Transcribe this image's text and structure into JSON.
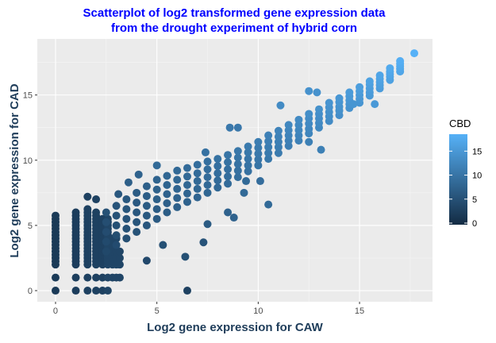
{
  "chart_data": {
    "type": "scatter",
    "title_line1": "Scatterplot of log2 transformed gene expression data",
    "title_line2": "from the drought experiment of hybrid corn",
    "xlabel": "Log2 gene expression for CAW",
    "ylabel": "Log2 gene expression for CAD",
    "xlim": [
      -0.9,
      18.6
    ],
    "ylim": [
      -0.85,
      19.3
    ],
    "x_ticks": [
      "0",
      "5",
      "10",
      "15"
    ],
    "x_tick_values": [
      0,
      5,
      10,
      15
    ],
    "y_ticks": [
      "0",
      "5",
      "10",
      "15"
    ],
    "y_tick_values": [
      0,
      5,
      10,
      15
    ],
    "grid": true,
    "legend": {
      "title": "CBD",
      "position": "right",
      "labels": [
        "0",
        "5",
        "10",
        "15"
      ],
      "values": [
        0,
        5,
        10,
        15
      ],
      "range": [
        0,
        18.2
      ]
    },
    "colors": {
      "low": "#132B43",
      "high": "#56B1F7",
      "panel": "#EBEBEB",
      "title": "#0000FF",
      "axis_title": "#1F3D5A"
    },
    "strips": [
      {
        "x": 0,
        "y_from": 2,
        "y_to": 5.75,
        "step": 0.25,
        "also": [
          0,
          1
        ],
        "cbd": 2
      },
      {
        "x": 1,
        "y_from": 2,
        "y_to": 6.1,
        "step": 0.25,
        "also": [
          0,
          1
        ],
        "cbd": 2.5
      },
      {
        "x": 1.58,
        "y_from": 2,
        "y_to": 6.25,
        "step": 0.25,
        "also": [
          0,
          1,
          7.2
        ],
        "cbd": 3
      },
      {
        "x": 2,
        "y_from": 2,
        "y_to": 6,
        "step": 0.25,
        "also": [
          0,
          1,
          7
        ],
        "cbd": 3
      },
      {
        "x": 2.32,
        "y_from": 2,
        "y_to": 5.5,
        "step": 0.25,
        "also": [
          0,
          1
        ],
        "cbd": 3
      },
      {
        "x": 2.58,
        "y_from": 2,
        "y_to": 5.5,
        "step": 0.25,
        "also": [
          0,
          1
        ],
        "cbd": 3.5
      },
      {
        "x": 2.81,
        "y_from": 2,
        "y_to": 4,
        "step": 0.25,
        "also": [
          1
        ],
        "cbd": 3.5
      },
      {
        "x": 3,
        "y_from": 2,
        "y_to": 4,
        "step": 0.5,
        "also": [
          1
        ],
        "cbd": 3.5
      },
      {
        "x": 3.17,
        "y_from": 2,
        "y_to": 3,
        "step": 0.5,
        "also": [
          1
        ],
        "cbd": 3.5
      }
    ],
    "band": [
      {
        "x": 2.5,
        "y": [
          3,
          3.75,
          4.5,
          5.25,
          6
        ],
        "cbd": 4.5
      },
      {
        "x": 3,
        "y": [
          3.5,
          4.25,
          5,
          5.75,
          6.5
        ],
        "cbd": 5
      },
      {
        "x": 3.5,
        "y": [
          4,
          4.75,
          5.5,
          6.25,
          7
        ],
        "cbd": 5.5
      },
      {
        "x": 4,
        "y": [
          4.5,
          5.25,
          6,
          6.75,
          7.5
        ],
        "cbd": 6
      },
      {
        "x": 4.5,
        "y": [
          5,
          5.75,
          6.5,
          7.25,
          8
        ],
        "cbd": 6.5
      },
      {
        "x": 5,
        "y": [
          5.5,
          6.25,
          7,
          7.75,
          8.5
        ],
        "cbd": 7
      },
      {
        "x": 5.5,
        "y": [
          6,
          6.7,
          7.4,
          8.1,
          8.8
        ],
        "cbd": 7.4
      },
      {
        "x": 6,
        "y": [
          6.4,
          7.1,
          7.8,
          8.5,
          9.2
        ],
        "cbd": 7.8
      },
      {
        "x": 6.5,
        "y": [
          6.8,
          7.45,
          8.1,
          8.75,
          9.4
        ],
        "cbd": 8.1
      },
      {
        "x": 7,
        "y": [
          7.15,
          7.8,
          8.4,
          9,
          9.65
        ],
        "cbd": 8.4
      },
      {
        "x": 7.5,
        "y": [
          7.5,
          8.1,
          8.7,
          9.3,
          9.9
        ],
        "cbd": 8.7
      },
      {
        "x": 8,
        "y": [
          7.9,
          8.45,
          9,
          9.55,
          10.1
        ],
        "cbd": 9
      },
      {
        "x": 8.5,
        "y": [
          8.2,
          8.75,
          9.3,
          9.85,
          10.4
        ],
        "cbd": 9.3
      },
      {
        "x": 9,
        "y": [
          8.7,
          9.2,
          9.7,
          10.2,
          10.7
        ],
        "cbd": 9.7
      },
      {
        "x": 9.5,
        "y": [
          9.15,
          9.6,
          10.1,
          10.6,
          11.05
        ],
        "cbd": 10.1
      },
      {
        "x": 10,
        "y": [
          9.6,
          10.05,
          10.5,
          10.95,
          11.4
        ],
        "cbd": 10.5
      },
      {
        "x": 10.5,
        "y": [
          10.1,
          10.55,
          11,
          11.45,
          11.9
        ],
        "cbd": 11
      },
      {
        "x": 11,
        "y": [
          10.55,
          11,
          11.4,
          11.8,
          12.25
        ],
        "cbd": 11.4
      },
      {
        "x": 11.5,
        "y": [
          11.1,
          11.5,
          11.9,
          12.3,
          12.7
        ],
        "cbd": 11.9
      },
      {
        "x": 12,
        "y": [
          11.5,
          11.9,
          12.3,
          12.7,
          13.1
        ],
        "cbd": 12.3
      },
      {
        "x": 12.5,
        "y": [
          12.05,
          12.4,
          12.8,
          13.2,
          13.55
        ],
        "cbd": 12.8
      },
      {
        "x": 13,
        "y": [
          12.5,
          12.85,
          13.2,
          13.55,
          13.9
        ],
        "cbd": 13.2
      },
      {
        "x": 13.5,
        "y": [
          13,
          13.35,
          13.7,
          14.05,
          14.4
        ],
        "cbd": 13.7
      },
      {
        "x": 14,
        "y": [
          13.45,
          13.8,
          14.1,
          14.45,
          14.75
        ],
        "cbd": 14.1
      },
      {
        "x": 14.5,
        "y": [
          14,
          14.3,
          14.6,
          14.9,
          15.2
        ],
        "cbd": 14.6
      },
      {
        "x": 15,
        "y": [
          14.4,
          14.7,
          15,
          15.3,
          15.6
        ],
        "cbd": 15
      },
      {
        "x": 15.5,
        "y": [
          14.95,
          15.2,
          15.5,
          15.8,
          16.05
        ],
        "cbd": 15.5
      },
      {
        "x": 16,
        "y": [
          15.5,
          15.75,
          16,
          16.25,
          16.5
        ],
        "cbd": 16
      },
      {
        "x": 16.5,
        "y": [
          16.15,
          16.4,
          16.6,
          16.8,
          17.05
        ],
        "cbd": 16.6
      },
      {
        "x": 17,
        "y": [
          16.8,
          17,
          17.2,
          17.4,
          17.6
        ],
        "cbd": 17.2
      }
    ],
    "outliers": [
      [
        6.5,
        0,
        3
      ],
      [
        4.5,
        2.3,
        4
      ],
      [
        6.4,
        2.6,
        5
      ],
      [
        7.3,
        3.7,
        5.5
      ],
      [
        7.5,
        5.1,
        6.5
      ],
      [
        8.5,
        6,
        7.5
      ],
      [
        8.8,
        5.6,
        7.5
      ],
      [
        5.3,
        3.5,
        5
      ],
      [
        5,
        9.6,
        8.5
      ],
      [
        7.4,
        10.6,
        9.5
      ],
      [
        8.6,
        12.5,
        10.5
      ],
      [
        9,
        12.5,
        10.5
      ],
      [
        3.1,
        7.4,
        6
      ],
      [
        3.6,
        8.3,
        7
      ],
      [
        4.1,
        8.9,
        7.5
      ],
      [
        9.4,
        8.4,
        8.5
      ],
      [
        10.1,
        8.4,
        9
      ],
      [
        9.3,
        7.5,
        8.5
      ],
      [
        10.5,
        6.6,
        8.5
      ],
      [
        12.5,
        11.4,
        11.5
      ],
      [
        13.1,
        10.8,
        11.5
      ],
      [
        11.1,
        14.2,
        13
      ],
      [
        12.5,
        15.3,
        14
      ],
      [
        12.9,
        15.2,
        14
      ],
      [
        14.7,
        14.3,
        14.5
      ],
      [
        15.75,
        14.3,
        15
      ],
      [
        17.7,
        18.2,
        18.2
      ]
    ]
  }
}
